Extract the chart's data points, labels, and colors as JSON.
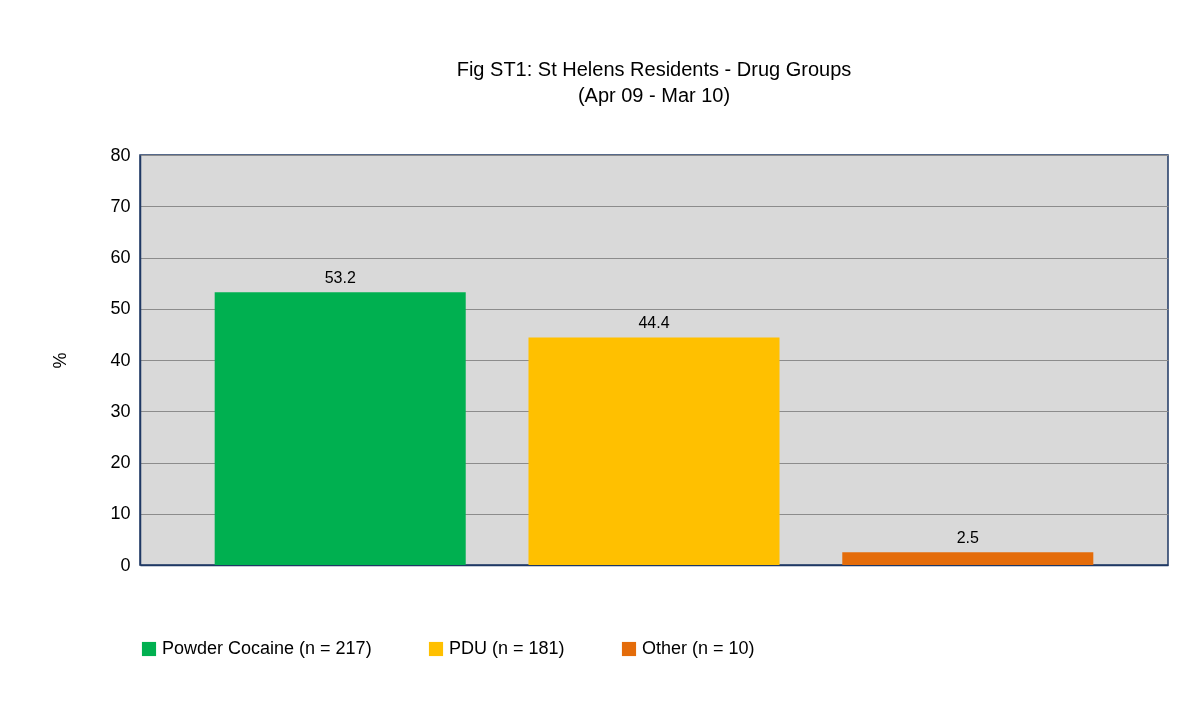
{
  "chart_data": {
    "type": "bar",
    "title": "Fig ST1: St Helens  Residents - Drug Groups",
    "subtitle": "(Apr 09 - Mar 10)",
    "ylabel": "%",
    "categories": [
      null
    ],
    "series": [
      {
        "name": "Powder Cocaine (n = 217)",
        "color": "#00b050",
        "values": [
          53.2
        ]
      },
      {
        "name": "PDU (n = 181)",
        "color": "#ffc000",
        "values": [
          44.4
        ]
      },
      {
        "name": "Other (n = 10)",
        "color": "#e46c0a",
        "values": [
          2.5
        ]
      }
    ],
    "ylim": [
      0,
      80
    ],
    "yticks": [
      0,
      10,
      20,
      30,
      40,
      50,
      60,
      70,
      80
    ],
    "grid": "y",
    "legend": "bottom",
    "data_labels": true
  }
}
